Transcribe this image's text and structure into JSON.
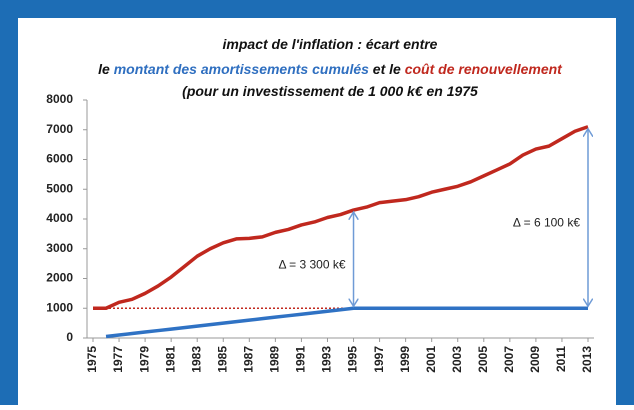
{
  "chart_data": {
    "type": "line",
    "title_parts": [
      {
        "text": "impact de l'inflation : écart entre",
        "color": "#111111",
        "line": 0
      },
      {
        "text": "le ",
        "color": "#111111",
        "line": 1
      },
      {
        "text": "montant des amortissements cumulés",
        "color": "#2f6fc0",
        "line": 1
      },
      {
        "text": " et le ",
        "color": "#111111",
        "line": 1
      },
      {
        "text": "coût de renouvellement",
        "color": "#c0281e",
        "line": 1
      },
      {
        "text": "(pour un investissement de 1 000 k€ en 1975",
        "color": "#111111",
        "line": 2
      }
    ],
    "x": [
      1975,
      1976,
      1977,
      1978,
      1979,
      1980,
      1981,
      1982,
      1983,
      1984,
      1985,
      1986,
      1987,
      1988,
      1989,
      1990,
      1991,
      1992,
      1993,
      1994,
      1995,
      1996,
      1997,
      1998,
      1999,
      2000,
      2001,
      2002,
      2003,
      2004,
      2005,
      2006,
      2007,
      2008,
      2009,
      2010,
      2011,
      2012,
      2013
    ],
    "series": [
      {
        "color": "#c0281e",
        "values": [
          1000,
          1000,
          1200,
          1300,
          1500,
          1750,
          2050,
          2400,
          2750,
          3000,
          3200,
          3330,
          3350,
          3400,
          3550,
          3650,
          3800,
          3900,
          4050,
          4150,
          4300,
          4400,
          4550,
          4600,
          4650,
          4750,
          4900,
          5000,
          5100,
          5250,
          5450,
          5650,
          5850,
          6150,
          6350,
          6450,
          6700,
          6950,
          7100
        ]
      },
      {
        "color": "#2f72c4",
        "values": [
          null,
          50,
          100,
          150,
          200,
          250,
          300,
          350,
          400,
          450,
          500,
          550,
          600,
          650,
          700,
          750,
          800,
          850,
          900,
          950,
          1000,
          1000,
          1000,
          1000,
          1000,
          1000,
          1000,
          1000,
          1000,
          1000,
          1000,
          1000,
          1000,
          1000,
          1000,
          1000,
          1000,
          1000,
          1000
        ]
      }
    ],
    "reference_line": {
      "value": 1000,
      "color": "#c0281e",
      "from": 1975,
      "to": 2013
    },
    "annotations": [
      {
        "text": "Δ = 3 300 k€",
        "x": 1995,
        "from": 1000,
        "to": 4300
      },
      {
        "text": "Δ = 6 100 k€",
        "x": 2013,
        "from": 1000,
        "to": 7100
      }
    ],
    "annotation_color": "#6f9bd6",
    "xlim": [
      1975,
      2013
    ],
    "xticks": [
      1975,
      1977,
      1979,
      1981,
      1983,
      1985,
      1987,
      1989,
      1991,
      1993,
      1995,
      1997,
      1999,
      2001,
      2003,
      2005,
      2007,
      2009,
      2011,
      2013
    ],
    "ylim": [
      0,
      8000
    ],
    "yticks": [
      0,
      1000,
      2000,
      3000,
      4000,
      5000,
      6000,
      7000,
      8000
    ],
    "grid": false
  }
}
